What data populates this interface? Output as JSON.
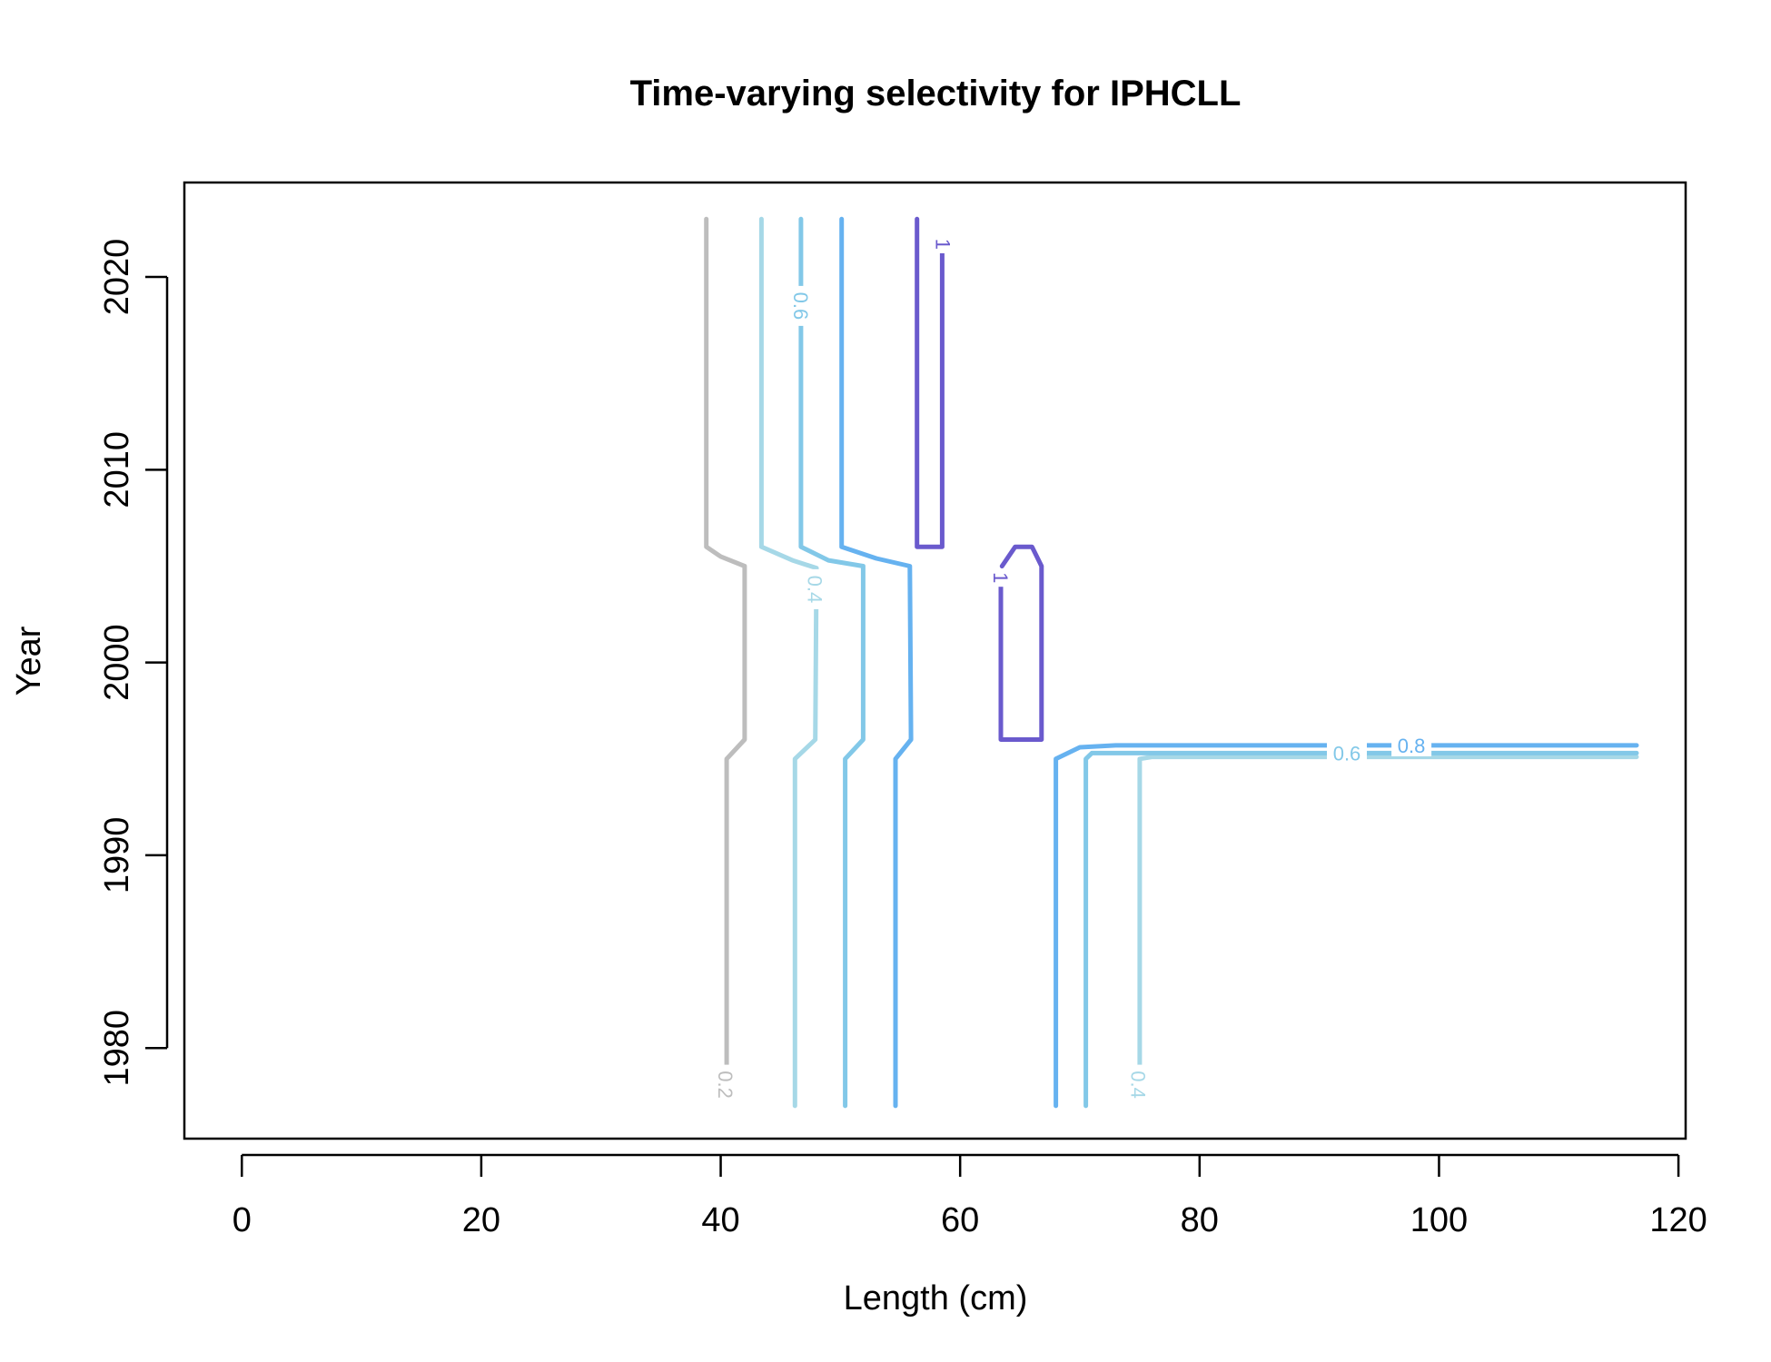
{
  "chart_data": {
    "type": "contour",
    "title": "Time-varying selectivity for IPHCLL",
    "xlabel": "Length (cm)",
    "ylabel": "Year",
    "xlim": [
      -4.8,
      120.6
    ],
    "ylim": [
      1975.3,
      2024.9
    ],
    "xticks": [
      "0",
      "20",
      "40",
      "60",
      "80",
      "100",
      "120"
    ],
    "yticks": [
      "1980",
      "1990",
      "2000",
      "2010",
      "2020"
    ],
    "grid": false,
    "colors": {
      "0.2": "#bdbdbd",
      "0.4": "#a6d8e7",
      "0.6": "#82c8e8",
      "0.8": "#66b2f0",
      "1": "#6a5acd"
    },
    "levels": [
      {
        "level": "0.2",
        "paths": [
          [
            [
              38.8,
              2023
            ],
            [
              38.8,
              2006
            ],
            [
              40,
              2005.5
            ],
            [
              42,
              2005
            ],
            [
              42,
              1996
            ],
            [
              40.5,
              1995
            ],
            [
              40.5,
              1978
            ]
          ]
        ]
      },
      {
        "level": "0.4",
        "paths": [
          [
            [
              43.4,
              2023
            ],
            [
              43.4,
              2006
            ],
            [
              46,
              2005.3
            ],
            [
              48,
              2004.9
            ],
            [
              47.9,
              1996
            ],
            [
              46.2,
              1995
            ],
            [
              46.2,
              1977
            ]
          ],
          [
            [
              75,
              1979
            ],
            [
              75,
              1995
            ],
            [
              76,
              1995.1
            ],
            [
              116.5,
              1995.1
            ]
          ]
        ]
      },
      {
        "level": "0.6",
        "paths": [
          [
            [
              46.7,
              2023
            ],
            [
              46.7,
              2006
            ],
            [
              49,
              2005.3
            ],
            [
              51.9,
              2005
            ],
            [
              51.9,
              1996
            ],
            [
              50.4,
              1995
            ],
            [
              50.4,
              1977
            ]
          ],
          [
            [
              70.5,
              1977
            ],
            [
              70.5,
              1995
            ],
            [
              71,
              1995.3
            ],
            [
              116.5,
              1995.3
            ]
          ]
        ]
      },
      {
        "level": "0.8",
        "paths": [
          [
            [
              50.1,
              2023
            ],
            [
              50.1,
              2006
            ],
            [
              53,
              2005.4
            ],
            [
              55.8,
              2005
            ],
            [
              55.9,
              1996
            ],
            [
              54.6,
              1995
            ],
            [
              54.6,
              1977
            ]
          ],
          [
            [
              68,
              1977
            ],
            [
              68,
              1995
            ],
            [
              70,
              1995.6
            ],
            [
              73,
              1995.7
            ],
            [
              116.5,
              1995.7
            ]
          ]
        ]
      },
      {
        "level": "1",
        "paths": [
          [
            [
              56.4,
              2023
            ],
            [
              56.4,
              2006
            ],
            [
              58.5,
              2006
            ],
            [
              58.5,
              2021.5
            ]
          ],
          [
            [
              63.4,
              2004
            ],
            [
              63.4,
              1996
            ],
            [
              66.8,
              1996
            ],
            [
              66.8,
              2005
            ],
            [
              66,
              2006
            ],
            [
              64.6,
              2006
            ],
            [
              63.5,
              2005
            ]
          ]
        ]
      }
    ],
    "labels": [
      {
        "text": "1",
        "x": 58.6,
        "y": 2021.7,
        "rotate": 90
      },
      {
        "text": "0.6",
        "x": 46.7,
        "y": 2018.5,
        "rotate": 90
      },
      {
        "text": "0.4",
        "x": 47.9,
        "y": 2003.8,
        "rotate": 90
      },
      {
        "text": "1",
        "x": 63.4,
        "y": 2004.4,
        "rotate": 90
      },
      {
        "text": "0.8",
        "x": 97.7,
        "y": 1995.7,
        "rotate": 0
      },
      {
        "text": "0.6",
        "x": 92.3,
        "y": 1995.3,
        "rotate": 0
      },
      {
        "text": "0.2",
        "x": 40.4,
        "y": 1978.1,
        "rotate": 90
      },
      {
        "text": "0.4",
        "x": 74.9,
        "y": 1978.1,
        "rotate": 90
      }
    ]
  }
}
